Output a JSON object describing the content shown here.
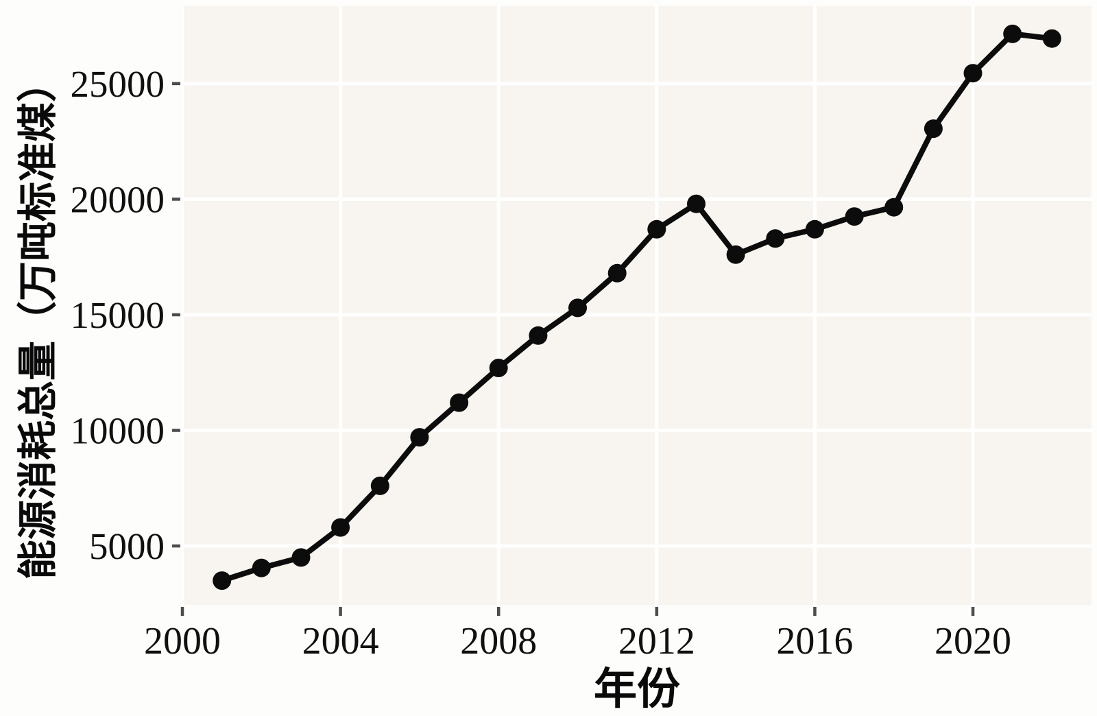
{
  "figure": {
    "background": "#fdfdfb",
    "panel_background": "#f8f5f0",
    "gridline_color": "#ffffff",
    "line_color": "#0c0c0c",
    "point_color": "#0c0c0c",
    "tick_mark_color": "#4d4d4d",
    "label_color": "#101010"
  },
  "chart_data": {
    "type": "line",
    "title": "",
    "xlabel": "年份",
    "ylabel": "能源消耗总量（万吨标准煤）",
    "x": [
      2001,
      2002,
      2003,
      2004,
      2005,
      2006,
      2007,
      2008,
      2009,
      2010,
      2011,
      2012,
      2013,
      2014,
      2015,
      2016,
      2017,
      2018,
      2019,
      2020,
      2021,
      2022
    ],
    "values": [
      3500,
      4050,
      4500,
      5800,
      7600,
      9700,
      11200,
      12700,
      14100,
      15300,
      16800,
      18700,
      19800,
      17600,
      18300,
      18700,
      19250,
      19650,
      23050,
      25450,
      27150,
      26950
    ],
    "series_name": "能源消耗总量",
    "x_ticks": [
      2000,
      2004,
      2008,
      2012,
      2016,
      2020
    ],
    "y_ticks": [
      5000,
      10000,
      15000,
      20000,
      25000
    ],
    "xlim": [
      2000,
      2023
    ],
    "ylim": [
      2450,
      28350
    ],
    "grid": true,
    "legend_position": "none",
    "marker": "circle"
  }
}
